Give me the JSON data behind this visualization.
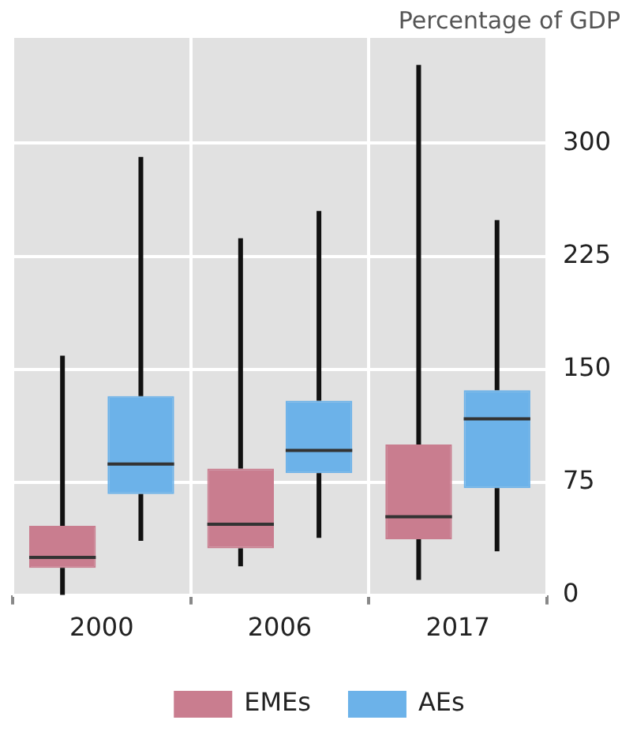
{
  "chart_data": {
    "type": "box",
    "ylabel": "Percentage of GDP",
    "categories": [
      "2000",
      "2006",
      "2017"
    ],
    "series": [
      {
        "name": "EMEs",
        "color": "#c97d8f",
        "boxes": [
          {
            "low": 0,
            "q1": 18,
            "median": 25,
            "q3": 46,
            "high": 159
          },
          {
            "low": 19,
            "q1": 31,
            "median": 47,
            "q3": 84,
            "high": 237
          },
          {
            "low": 10,
            "q1": 37,
            "median": 52,
            "q3": 100,
            "high": 352
          }
        ]
      },
      {
        "name": "AEs",
        "color": "#6cb2e9",
        "boxes": [
          {
            "low": 36,
            "q1": 67,
            "median": 87,
            "q3": 132,
            "high": 291
          },
          {
            "low": 38,
            "q1": 81,
            "median": 96,
            "q3": 129,
            "high": 255
          },
          {
            "low": 29,
            "q1": 71,
            "median": 117,
            "q3": 136,
            "high": 249
          }
        ]
      }
    ],
    "ylim": [
      0,
      370
    ],
    "yticks": [
      0,
      75,
      150,
      225,
      300
    ],
    "grid": true,
    "legend": "bottom"
  }
}
